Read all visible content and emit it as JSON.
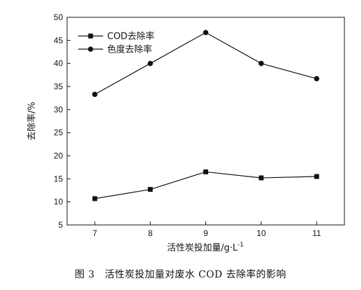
{
  "chart_data": {
    "type": "line",
    "xlabel": "活性炭投加量/g·L",
    "xlabel_sup": "-1",
    "ylabel": "去除率/%",
    "x": [
      7,
      8,
      9,
      10,
      11
    ],
    "xlim": [
      6.5,
      11.5
    ],
    "ylim": [
      5,
      50
    ],
    "xticks": [
      7,
      8,
      9,
      10,
      11
    ],
    "yticks": [
      5,
      10,
      15,
      20,
      25,
      30,
      35,
      40,
      45,
      50
    ],
    "grid": false,
    "legend_position": "top-left",
    "series": [
      {
        "name": "COD去除率",
        "marker": "square",
        "values": [
          10.7,
          12.7,
          16.5,
          15.2,
          15.5
        ]
      },
      {
        "name": "色度去除率",
        "marker": "circle",
        "values": [
          33.3,
          40.0,
          46.7,
          40.0,
          36.7
        ]
      }
    ]
  },
  "caption": "图 3　活性炭投加量对废水 COD 去除率的影响"
}
